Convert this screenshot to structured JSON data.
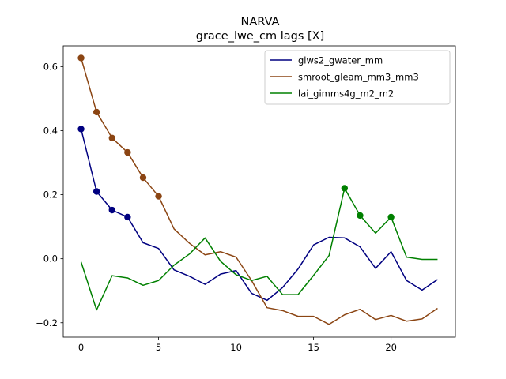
{
  "chart_data": {
    "type": "line",
    "title": "NARVA",
    "subtitle": "grace_lwe_cm lags [X]",
    "xlabel": "",
    "ylabel": "",
    "xlim": [
      -1.15,
      24.15
    ],
    "ylim": [
      -0.245,
      0.665
    ],
    "xticks": [
      0,
      5,
      10,
      15,
      20
    ],
    "xtick_labels": [
      "0",
      "5",
      "10",
      "15",
      "20"
    ],
    "yticks": [
      -0.2,
      0.0,
      0.2,
      0.4,
      0.6
    ],
    "ytick_labels": [
      "−0.2",
      "0.0",
      "0.2",
      "0.4",
      "0.6"
    ],
    "grid": false,
    "legend_position": "top-right",
    "x": [
      0,
      1,
      2,
      3,
      4,
      5,
      6,
      7,
      8,
      9,
      10,
      11,
      12,
      13,
      14,
      15,
      16,
      17,
      18,
      19,
      20,
      21,
      22,
      23
    ],
    "series": [
      {
        "name": "glws2_gwater_mm",
        "color": "#000080",
        "values": [
          0.405,
          0.21,
          0.152,
          0.13,
          0.05,
          0.032,
          -0.035,
          -0.055,
          -0.08,
          -0.048,
          -0.037,
          -0.108,
          -0.13,
          -0.09,
          -0.032,
          0.043,
          0.067,
          0.065,
          0.037,
          -0.03,
          0.022,
          -0.068,
          -0.098,
          -0.065
        ],
        "markers": [
          0,
          1,
          2,
          3
        ]
      },
      {
        "name": "smroot_gleam_mm3_mm3",
        "color": "#8B4513",
        "values": [
          0.627,
          0.458,
          0.377,
          0.332,
          0.253,
          0.195,
          0.093,
          0.048,
          0.012,
          0.022,
          0.005,
          -0.068,
          -0.153,
          -0.162,
          -0.18,
          -0.18,
          -0.205,
          -0.175,
          -0.158,
          -0.19,
          -0.177,
          -0.195,
          -0.188,
          -0.155
        ],
        "markers": [
          0,
          1,
          2,
          3,
          4,
          5
        ]
      },
      {
        "name": "lai_gimms4g_m2_m2",
        "color": "#008000",
        "values": [
          -0.01,
          -0.16,
          -0.053,
          -0.06,
          -0.083,
          -0.068,
          -0.02,
          0.015,
          0.065,
          -0.008,
          -0.05,
          -0.068,
          -0.055,
          -0.112,
          -0.112,
          -0.052,
          0.01,
          0.22,
          0.135,
          0.08,
          0.13,
          0.005,
          -0.002,
          -0.002
        ],
        "markers": [
          17,
          18,
          20
        ]
      }
    ]
  }
}
